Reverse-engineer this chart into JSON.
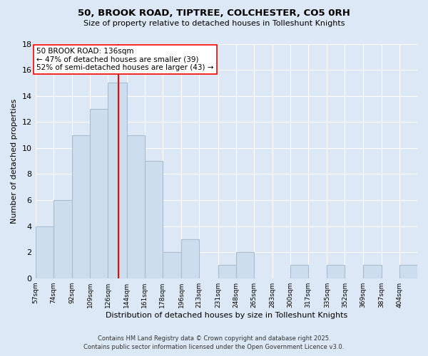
{
  "title1": "50, BROOK ROAD, TIPTREE, COLCHESTER, CO5 0RH",
  "title2": "Size of property relative to detached houses in Tolleshunt Knights",
  "xlabel": "Distribution of detached houses by size in Tolleshunt Knights",
  "ylabel": "Number of detached properties",
  "bin_labels": [
    "57sqm",
    "74sqm",
    "92sqm",
    "109sqm",
    "126sqm",
    "144sqm",
    "161sqm",
    "178sqm",
    "196sqm",
    "213sqm",
    "231sqm",
    "248sqm",
    "265sqm",
    "283sqm",
    "300sqm",
    "317sqm",
    "335sqm",
    "352sqm",
    "369sqm",
    "387sqm",
    "404sqm"
  ],
  "bin_edges": [
    57,
    74,
    92,
    109,
    126,
    144,
    161,
    178,
    196,
    213,
    231,
    248,
    265,
    283,
    300,
    317,
    335,
    352,
    369,
    387,
    404
  ],
  "counts": [
    4,
    6,
    11,
    13,
    15,
    11,
    9,
    2,
    3,
    0,
    1,
    2,
    0,
    0,
    1,
    0,
    1,
    0,
    1,
    0,
    1
  ],
  "bar_color": "#ccdded",
  "bar_edge_color": "#aabcce",
  "vline_x": 136,
  "vline_color": "red",
  "annotation_title": "50 BROOK ROAD: 136sqm",
  "annotation_line1": "← 47% of detached houses are smaller (39)",
  "annotation_line2": "52% of semi-detached houses are larger (43) →",
  "annotation_box_facecolor": "white",
  "annotation_box_edgecolor": "red",
  "ylim": [
    0,
    18
  ],
  "yticks": [
    0,
    2,
    4,
    6,
    8,
    10,
    12,
    14,
    16,
    18
  ],
  "background_color": "#dce8f5",
  "grid_color": "white",
  "footer1": "Contains HM Land Registry data © Crown copyright and database right 2025.",
  "footer2": "Contains public sector information licensed under the Open Government Licence v3.0."
}
